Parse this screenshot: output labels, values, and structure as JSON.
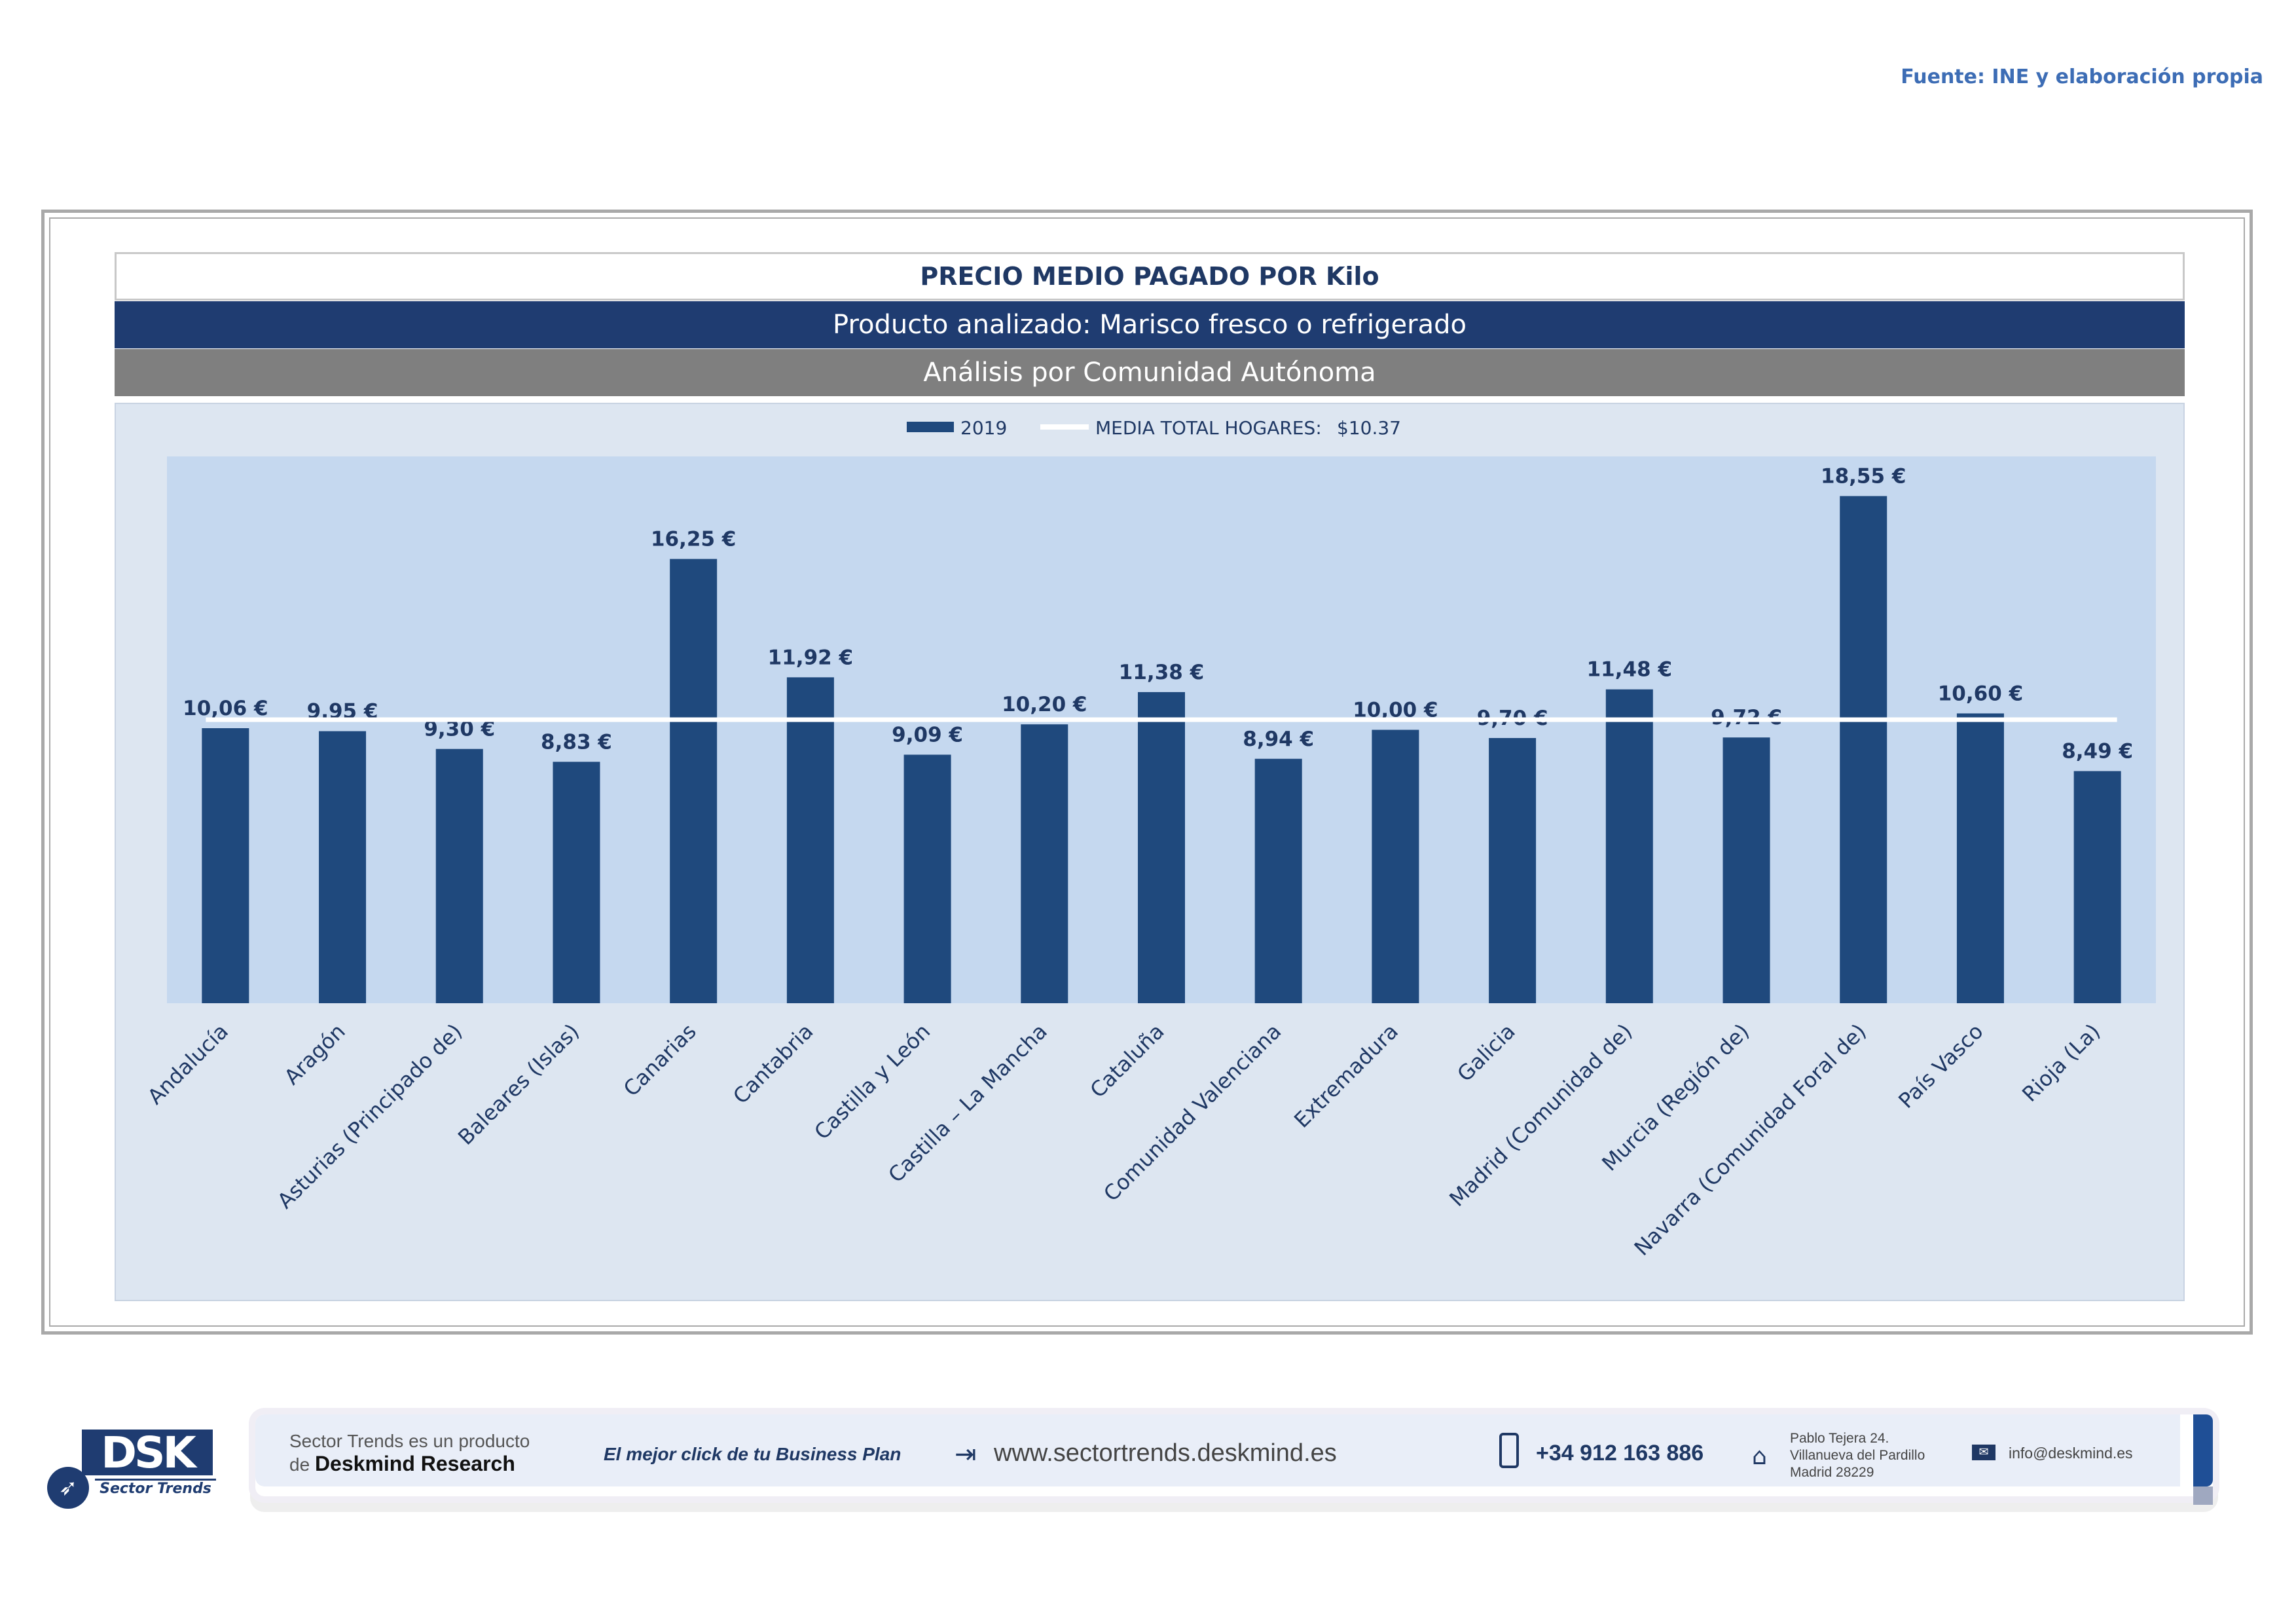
{
  "source": "Fuente: INE y elaboración propia",
  "header": {
    "title": "PRECIO MEDIO PAGADO POR Kilo",
    "product": "Producto analizado: Marisco fresco o refrigerado",
    "analysis": "Análisis por Comunidad Autónoma"
  },
  "chart_data": {
    "type": "bar",
    "title": "PRECIO MEDIO PAGADO POR Kilo",
    "categories": [
      "Andalucía",
      "Aragón",
      "Asturias (Principado de)",
      "Baleares (Islas)",
      "Canarias",
      "Cantabria",
      "Castilla y León",
      "Castilla – La Mancha",
      "Cataluña",
      "Comunidad Valenciana",
      "Extremadura",
      "Galicia",
      "Madrid (Comunidad de)",
      "Murcia (Región de)",
      "Navarra (Comunidad Foral de)",
      "País Vasco",
      "Rioja (La)"
    ],
    "series": [
      {
        "name": "2019",
        "values": [
          10.06,
          9.95,
          9.3,
          8.83,
          16.25,
          11.92,
          9.09,
          10.2,
          11.38,
          8.94,
          10.0,
          9.7,
          11.48,
          9.72,
          18.55,
          10.6,
          8.49
        ],
        "labels": [
          "10,06 €",
          "9,95 €",
          "9,30 €",
          "8,83 €",
          "16,25 €",
          "11,92 €",
          "9,09 €",
          "10,20 €",
          "11,38 €",
          "8,94 €",
          "10,00 €",
          "9,70 €",
          "11,48 €",
          "9,72 €",
          "18,55 €",
          "10,60 €",
          "8,49 €"
        ]
      }
    ],
    "reference_line": {
      "name": "MEDIA TOTAL  HOGARES:",
      "value": 10.37,
      "label": "$10.37"
    },
    "legend": {
      "position": "top-center"
    },
    "ylim": [
      0,
      20
    ],
    "xlabel": "",
    "ylabel": "",
    "grid": false,
    "colors": {
      "bar": "#1f497d",
      "line": "#ffffff",
      "plot_bg": "#c5d8ef",
      "label": "#1f3864"
    }
  },
  "footer": {
    "logo_text": "DSK",
    "logo_sub": "Sector Trends",
    "product_line1": "Sector Trends es un producto",
    "product_line2_prefix": "de",
    "product_line2_bold": "Deskmind Research",
    "slogan": "El mejor click de tu Business Plan",
    "website": "www.sectortrends.deskmind.es",
    "phone": "+34 912 163 886",
    "address_line1": "Pablo Tejera 24.",
    "address_line2": "Villanueva del Pardillo",
    "address_line3": "Madrid 28229",
    "email": "info@deskmind.es"
  }
}
